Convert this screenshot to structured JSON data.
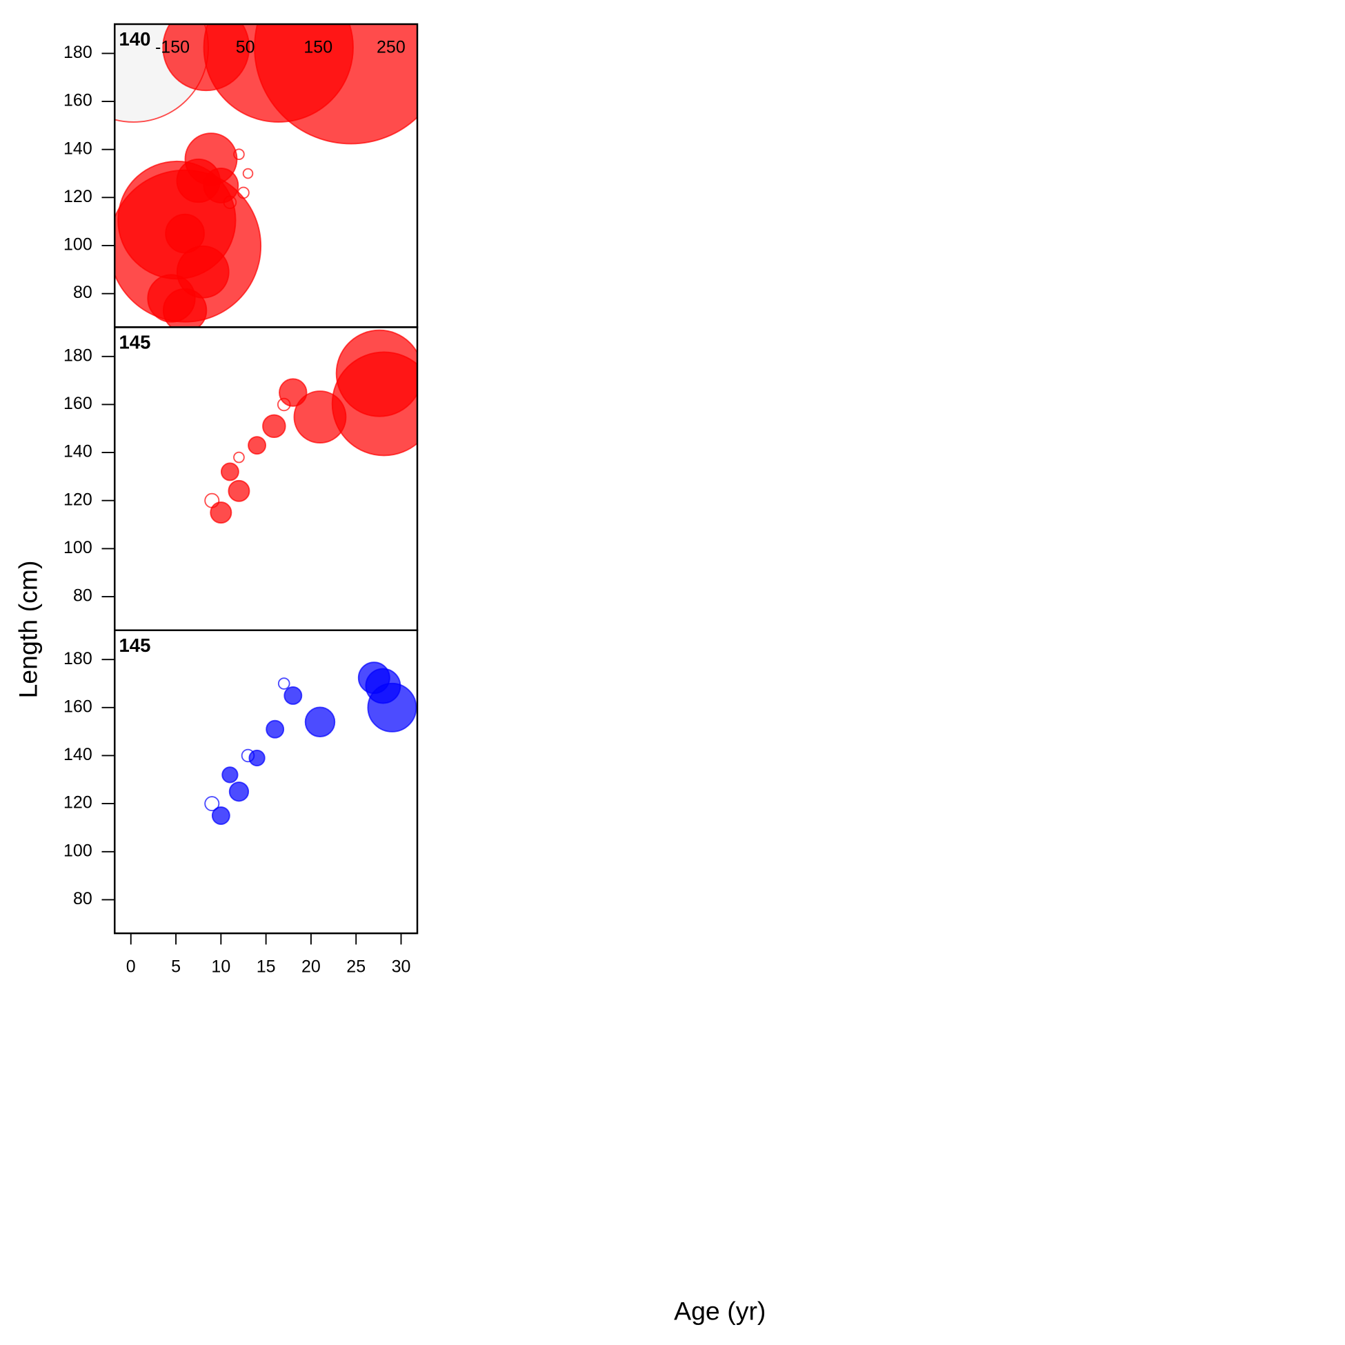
{
  "axis_labels": {
    "x": "Age (yr)",
    "y": "Length (cm)"
  },
  "chart_data": [
    {
      "type": "bubble",
      "title": "140",
      "xlim": [
        -1.8,
        31.8
      ],
      "ylim": [
        66,
        192.2
      ],
      "yticks": [
        80,
        100,
        120,
        140,
        160,
        180
      ],
      "size_legend": [
        -150,
        50,
        150,
        250
      ],
      "series": [
        {
          "color": "#ff0000",
          "x": [
            6,
            5.1,
            8.9,
            7.5,
            6,
            4.5,
            6,
            8,
            10,
            12,
            13,
            11,
            12.5
          ],
          "y": [
            99.8,
            110.6,
            136,
            127,
            105,
            78,
            73,
            89,
            125,
            138,
            130,
            118,
            122
          ],
          "sizes": [
            155,
            93,
            18,
            12.5,
            10,
            15,
            12.5,
            18,
            8,
            -0.7,
            -0.6,
            -1,
            -0.8
          ]
        }
      ]
    },
    {
      "type": "bubble",
      "title": "145",
      "xlim": [
        -1.8,
        31.8
      ],
      "ylim": [
        66,
        192.2
      ],
      "yticks": [
        80,
        100,
        120,
        140,
        160,
        180
      ],
      "series": [
        {
          "color": "#ff0000",
          "x": [
            27.6,
            28.1,
            21,
            18,
            15.9,
            14,
            12,
            10,
            11,
            9,
            12,
            17
          ],
          "y": [
            173,
            160.3,
            154.8,
            165,
            151,
            143,
            124,
            115,
            132,
            120,
            138,
            160
          ],
          "sizes": [
            50,
            72,
            18,
            5,
            3.4,
            2,
            2.9,
            2.9,
            2,
            -1.3,
            -0.7,
            -1
          ]
        }
      ]
    },
    {
      "type": "bubble",
      "title": "145",
      "xlim": [
        -1.8,
        31.8
      ],
      "ylim": [
        66,
        192.2
      ],
      "yticks": [
        80,
        100,
        120,
        140,
        160,
        180
      ],
      "xticks": [
        0,
        5,
        10,
        15,
        20,
        25,
        30
      ],
      "series": [
        {
          "color": "#0000ff",
          "x": [
            27,
            28,
            29,
            21,
            18,
            16,
            14,
            12,
            10,
            11,
            9,
            13,
            17
          ],
          "y": [
            172.4,
            169,
            160,
            154,
            165,
            151,
            139,
            125,
            115,
            132,
            120,
            140,
            170
          ],
          "sizes": [
            6.5,
            8,
            15.7,
            5.8,
            2,
            2,
            1.6,
            2.4,
            2,
            1.6,
            -1.3,
            -1,
            -0.8
          ]
        }
      ]
    }
  ]
}
